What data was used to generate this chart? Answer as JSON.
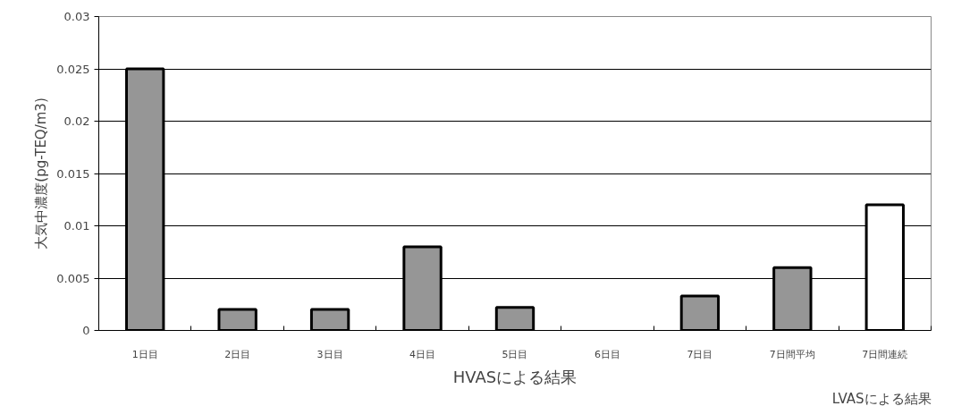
{
  "chart_data": {
    "type": "bar",
    "categories": [
      "1日目",
      "2日目",
      "3日目",
      "4日目",
      "5日目",
      "6日目",
      "7日目",
      "7日間平均",
      "7日間連続"
    ],
    "values": [
      0.025,
      0.002,
      0.002,
      0.008,
      0.0022,
      null,
      0.0033,
      0.006,
      0.012
    ],
    "colors": [
      "#969696",
      "#969696",
      "#969696",
      "#969696",
      "#969696",
      "#969696",
      "#969696",
      "#969696",
      "#ffffff"
    ],
    "xlabel": "HVASによる結果",
    "ylabel": "大気中濃度(pg-TEQ/m3)",
    "annotations": [
      "LVASによる結果"
    ],
    "ylim": [
      0,
      0.03
    ],
    "yticks": [
      0,
      0.005,
      0.01,
      0.015,
      0.02,
      0.025,
      0.03
    ],
    "grid": "y"
  }
}
